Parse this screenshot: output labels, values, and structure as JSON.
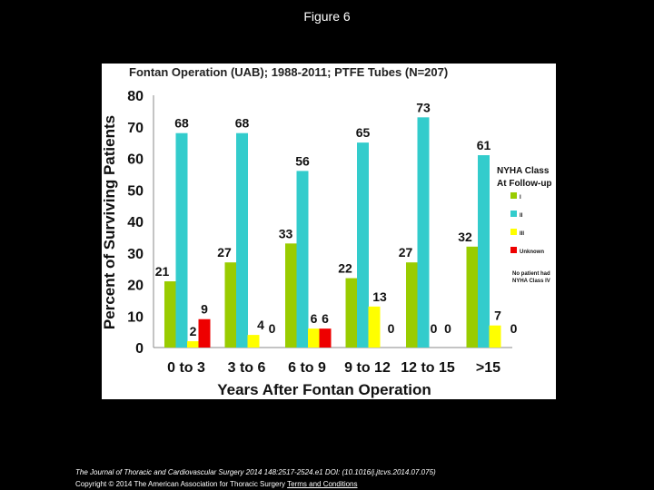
{
  "page": {
    "title": "Figure 6"
  },
  "footer": {
    "citation": "The Journal of Thoracic and Cardiovascular Surgery 2014 148:2517-2524.e1 DOI: (10.1016/j.jtcvs.2014.07.075)",
    "copyright": "Copyright © 2014 The American Association for Thoracic Surgery",
    "link": "Terms and Conditions"
  },
  "colors": {
    "I": "#99cc00",
    "II": "#33cccc",
    "III": "#ffff00",
    "Unknown": "#ee0000"
  },
  "chart_data": {
    "type": "bar",
    "title": "Fontan Operation (UAB); 1988-2011; PTFE Tubes (N=207)",
    "xlabel": "Years After Fontan Operation",
    "ylabel": "Percent of Surviving Patients",
    "ylim": [
      0,
      80
    ],
    "yticks": [
      "0",
      "10",
      "20",
      "30",
      "40",
      "50",
      "60",
      "70",
      "80"
    ],
    "categories": [
      "0 to 3",
      "3 to 6",
      "6 to 9",
      "9 to 12",
      "12 to 15",
      ">15"
    ],
    "series": [
      {
        "name": "I",
        "values": [
          21,
          27,
          33,
          22,
          27,
          32
        ],
        "labels": [
          "21",
          "27",
          "33",
          "22",
          "27",
          "32"
        ]
      },
      {
        "name": "II",
        "values": [
          68,
          68,
          56,
          65,
          73,
          61
        ],
        "labels": [
          "68",
          "68",
          "56",
          "65",
          "73",
          "61"
        ]
      },
      {
        "name": "III",
        "values": [
          2,
          4,
          6,
          13,
          0,
          7
        ],
        "labels": [
          "2",
          "4",
          "6",
          "13",
          "0",
          "7"
        ]
      },
      {
        "name": "Unknown",
        "values": [
          9,
          0,
          6,
          0,
          0,
          0
        ],
        "labels": [
          "9",
          "0",
          "6",
          "0",
          "0",
          "0"
        ]
      }
    ],
    "legend": {
      "title_line1": "NYHA Class",
      "title_line2": "At Follow-up",
      "items": [
        "I",
        "II",
        "III",
        "Unknown"
      ],
      "note_line1": "No patient had",
      "note_line2": "NYHA Class IV",
      "position": "right"
    }
  }
}
